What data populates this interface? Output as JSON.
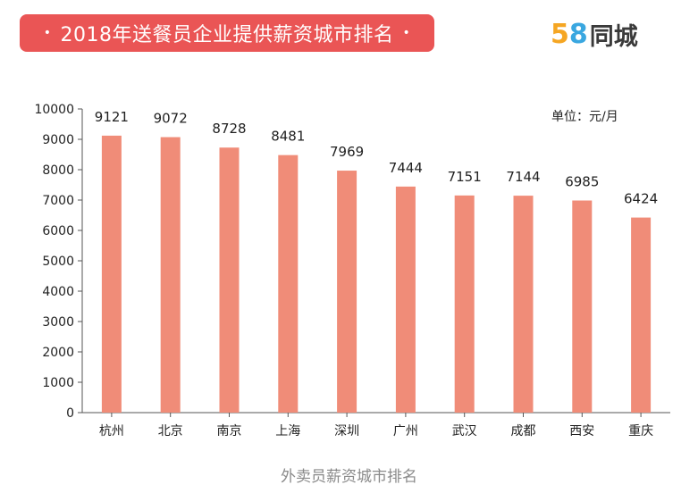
{
  "header": {
    "title": "2018年送餐员企业提供薪资城市排名",
    "dot": "•"
  },
  "logo": {
    "digit1": "5",
    "digit2": "8",
    "text": "同城",
    "color_5": "#f5a623",
    "color_8": "#3aa7e0"
  },
  "unit_label": "单位：元/月",
  "caption": "外卖员薪资城市排名",
  "chart_data": {
    "type": "bar",
    "categories": [
      "杭州",
      "北京",
      "南京",
      "上海",
      "深圳",
      "广州",
      "武汉",
      "成都",
      "西安",
      "重庆"
    ],
    "values": [
      9121,
      9072,
      8728,
      8481,
      7969,
      7444,
      7151,
      7144,
      6985,
      6424
    ],
    "yticks": [
      0,
      1000,
      2000,
      3000,
      4000,
      5000,
      6000,
      7000,
      8000,
      9000,
      10000
    ],
    "ylim": [
      0,
      10000
    ],
    "bar_color": "#f08c78",
    "grid": false,
    "title": "",
    "xlabel": "",
    "ylabel": ""
  }
}
